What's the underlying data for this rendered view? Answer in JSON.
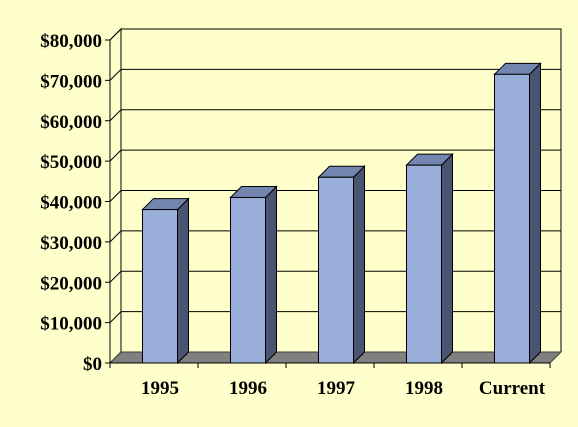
{
  "chart_data": {
    "type": "bar",
    "categories": [
      "1995",
      "1996",
      "1997",
      "1998",
      "Current"
    ],
    "values": [
      38000,
      41000,
      46000,
      49000,
      71500
    ],
    "ylim": [
      0,
      80000
    ],
    "yticks": [
      "$0",
      "$10,000",
      "$20,000",
      "$30,000",
      "$40,000",
      "$50,000",
      "$60,000",
      "$70,000",
      "$80,000"
    ],
    "grid": true,
    "legend": "none",
    "colors": {
      "background": "#FFFFCC",
      "bar_front": "#99AED8",
      "bar_side": "#4A5470",
      "bar_top": "#7286B0",
      "floor": "#808080",
      "wall": "#FFFFCC",
      "gridline": "#000000"
    }
  }
}
